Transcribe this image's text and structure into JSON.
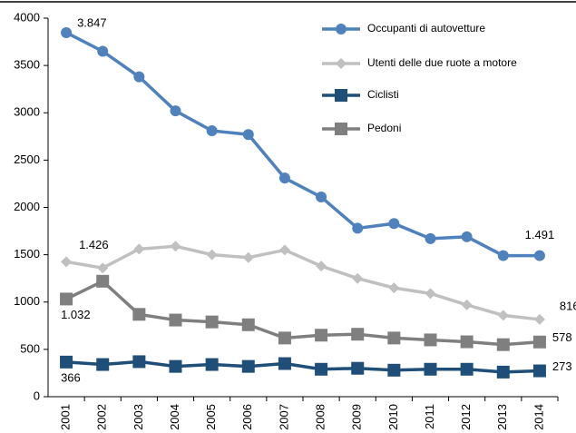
{
  "chart_data": {
    "type": "line",
    "categories": [
      "2001",
      "2002",
      "2003",
      "2004",
      "2005",
      "2006",
      "2007",
      "2008",
      "2009",
      "2010",
      "2011",
      "2012",
      "2013",
      "2014"
    ],
    "series": [
      {
        "name": "Occupanti di autovetture",
        "color": "#4f81bd",
        "marker": "circle",
        "values": [
          3847,
          3650,
          3380,
          3020,
          2810,
          2770,
          2310,
          2110,
          1780,
          1830,
          1670,
          1690,
          1491,
          1491
        ],
        "value_labels": [
          "3.847",
          null,
          null,
          null,
          null,
          null,
          null,
          null,
          null,
          null,
          null,
          null,
          null,
          "1.491"
        ]
      },
      {
        "name": "Utenti delle due ruote a motore",
        "color": "#c0c0c0",
        "marker": "diamond",
        "values": [
          1426,
          1360,
          1560,
          1590,
          1500,
          1470,
          1550,
          1380,
          1250,
          1150,
          1090,
          970,
          860,
          816
        ],
        "value_labels": [
          "1.426",
          null,
          null,
          null,
          null,
          null,
          null,
          null,
          null,
          null,
          null,
          null,
          null,
          "816"
        ]
      },
      {
        "name": "Ciclisti",
        "color": "#1f4e79",
        "marker": "square",
        "values": [
          366,
          340,
          370,
          320,
          340,
          320,
          350,
          290,
          300,
          280,
          290,
          290,
          260,
          273
        ],
        "value_labels": [
          "366",
          null,
          null,
          null,
          null,
          null,
          null,
          null,
          null,
          null,
          null,
          null,
          null,
          "273"
        ]
      },
      {
        "name": "Pedoni",
        "color": "#7f7f7f",
        "marker": "square",
        "values": [
          1032,
          1220,
          870,
          810,
          790,
          760,
          620,
          650,
          660,
          620,
          600,
          580,
          550,
          578
        ],
        "value_labels": [
          "1.032",
          null,
          null,
          null,
          null,
          null,
          null,
          null,
          null,
          null,
          null,
          null,
          null,
          "578"
        ]
      }
    ],
    "ylim": [
      0,
      4000
    ],
    "yticks": [
      0,
      500,
      1000,
      1500,
      2000,
      2500,
      3000,
      3500,
      4000
    ],
    "grid": false
  }
}
